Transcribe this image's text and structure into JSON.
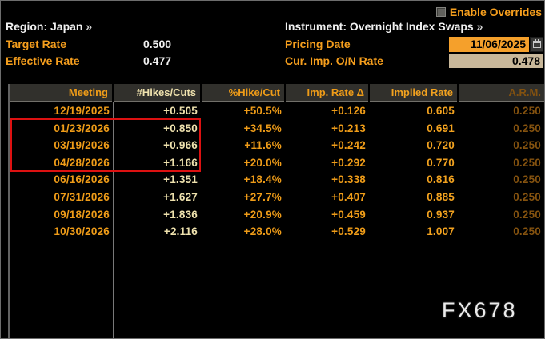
{
  "overrides": {
    "label": "Enable Overrides",
    "checked": false
  },
  "header": {
    "region_label": "Region:",
    "region_value": "Japan",
    "region_arrow": "»",
    "instrument_label": "Instrument:",
    "instrument_value": "Overnight Index Swaps",
    "instrument_arrow": "»",
    "target_rate_label": "Target Rate",
    "target_rate_value": "0.500",
    "effective_rate_label": "Effective Rate",
    "effective_rate_value": "0.477",
    "pricing_date_label": "Pricing Date",
    "pricing_date_value": "11/06/2025",
    "cur_imp_label": "Cur. Imp. O/N Rate",
    "cur_imp_value": "0.478"
  },
  "table": {
    "columns": [
      "Meeting",
      "#Hikes/Cuts",
      "%Hike/Cut",
      "Imp. Rate Δ",
      "Implied Rate",
      "A.R.M."
    ],
    "rows": [
      [
        "12/19/2025",
        "+0.505",
        "+50.5%",
        "+0.126",
        "0.605",
        "0.250"
      ],
      [
        "01/23/2026",
        "+0.850",
        "+34.5%",
        "+0.213",
        "0.691",
        "0.250"
      ],
      [
        "03/19/2026",
        "+0.966",
        "+11.6%",
        "+0.242",
        "0.720",
        "0.250"
      ],
      [
        "04/28/2026",
        "+1.166",
        "+20.0%",
        "+0.292",
        "0.770",
        "0.250"
      ],
      [
        "06/16/2026",
        "+1.351",
        "+18.4%",
        "+0.338",
        "0.816",
        "0.250"
      ],
      [
        "07/31/2026",
        "+1.627",
        "+27.7%",
        "+0.407",
        "0.885",
        "0.250"
      ],
      [
        "09/18/2026",
        "+1.836",
        "+20.9%",
        "+0.459",
        "0.937",
        "0.250"
      ],
      [
        "10/30/2026",
        "+2.116",
        "+28.0%",
        "+0.529",
        "1.007",
        "0.250"
      ]
    ],
    "highlighted_rows": [
      1,
      2,
      3
    ]
  },
  "watermark": "FX678",
  "colors": {
    "background": "#000000",
    "amber_label": "#f59e1d",
    "white_text": "#f0f0f0",
    "table_header_bg": "#31302c",
    "date_text": "#ef9c18",
    "hikes_text": "#eee1ad",
    "arm_dim_text": "#84520f",
    "highlight_red": "#dd1111",
    "pricing_date_field_bg": "#f5a02b",
    "cur_imp_field_bg": "#c9b89a",
    "watermark_text": "#ebebeb"
  }
}
